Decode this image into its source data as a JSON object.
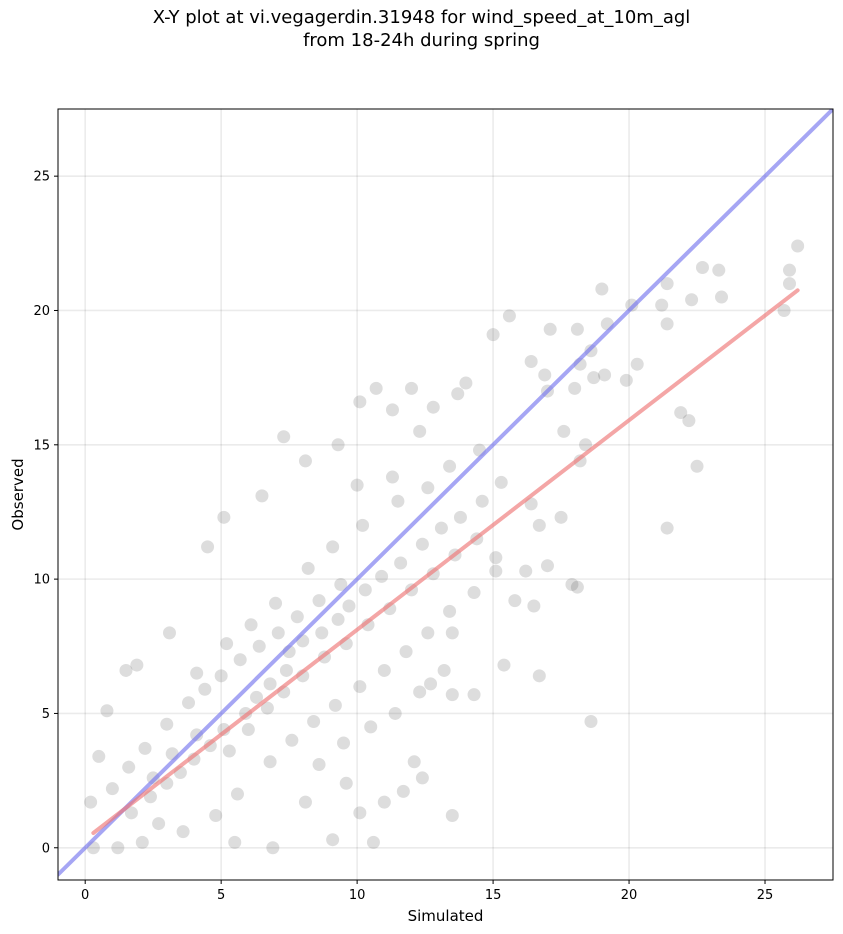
{
  "title_line1": "X-Y plot at vi.vegagerdin.31948 for wind_speed_at_10m_agl",
  "title_line2": "from 18-24h during spring",
  "chart_data": {
    "type": "scatter",
    "xlabel": "Simulated",
    "ylabel": "Observed",
    "xlim": [
      -1.0,
      27.5
    ],
    "ylim": [
      -1.2,
      27.5
    ],
    "xticks": [
      0,
      5,
      10,
      15,
      20,
      25
    ],
    "yticks": [
      0,
      5,
      10,
      15,
      20,
      25
    ],
    "grid": true,
    "points_color": "#555555",
    "series": [
      {
        "values": [
          [
            26.2,
            22.4
          ],
          [
            25.9,
            21.5
          ],
          [
            25.7,
            20.0
          ],
          [
            25.9,
            21.0
          ],
          [
            22.7,
            21.6
          ],
          [
            23.3,
            21.5
          ],
          [
            23.4,
            20.5
          ],
          [
            22.3,
            20.4
          ],
          [
            21.4,
            21.0
          ],
          [
            20.1,
            20.2
          ],
          [
            21.2,
            20.2
          ],
          [
            21.4,
            19.5
          ],
          [
            19.0,
            20.8
          ],
          [
            19.2,
            19.5
          ],
          [
            18.6,
            18.5
          ],
          [
            20.3,
            18.0
          ],
          [
            19.9,
            17.4
          ],
          [
            19.1,
            17.6
          ],
          [
            18.1,
            19.3
          ],
          [
            18.2,
            18.0
          ],
          [
            18.7,
            17.5
          ],
          [
            18.0,
            17.1
          ],
          [
            17.0,
            17.0
          ],
          [
            16.9,
            17.6
          ],
          [
            16.4,
            18.1
          ],
          [
            15.6,
            19.8
          ],
          [
            15.0,
            19.1
          ],
          [
            17.1,
            19.3
          ],
          [
            21.9,
            16.2
          ],
          [
            22.2,
            15.9
          ],
          [
            21.4,
            11.9
          ],
          [
            22.5,
            14.2
          ],
          [
            18.6,
            4.7
          ],
          [
            16.7,
            6.4
          ],
          [
            17.9,
            9.8
          ],
          [
            18.1,
            9.7
          ],
          [
            18.2,
            14.4
          ],
          [
            18.4,
            15.0
          ],
          [
            17.6,
            15.5
          ],
          [
            16.7,
            12.0
          ],
          [
            14.0,
            17.3
          ],
          [
            13.7,
            16.9
          ],
          [
            12.0,
            17.1
          ],
          [
            12.8,
            16.4
          ],
          [
            10.7,
            17.1
          ],
          [
            11.3,
            16.3
          ],
          [
            9.3,
            15.0
          ],
          [
            7.3,
            15.3
          ],
          [
            6.5,
            13.1
          ],
          [
            5.1,
            12.3
          ],
          [
            4.5,
            11.2
          ],
          [
            8.1,
            14.4
          ],
          [
            12.3,
            15.5
          ],
          [
            11.3,
            13.8
          ],
          [
            10.1,
            16.6
          ],
          [
            10.0,
            13.5
          ],
          [
            13.5,
            8.0
          ],
          [
            12.7,
            6.1
          ],
          [
            13.5,
            1.2
          ],
          [
            10.6,
            0.2
          ],
          [
            9.1,
            0.3
          ],
          [
            11.7,
            2.1
          ],
          [
            12.1,
            3.2
          ],
          [
            13.5,
            5.7
          ],
          [
            14.3,
            5.7
          ],
          [
            15.4,
            6.8
          ],
          [
            16.5,
            9.0
          ],
          [
            15.8,
            9.2
          ],
          [
            15.1,
            10.8
          ],
          [
            16.2,
            10.3
          ],
          [
            17.0,
            10.5
          ],
          [
            16.4,
            12.8
          ],
          [
            17.5,
            12.3
          ],
          [
            3.1,
            8.0
          ],
          [
            1.9,
            6.8
          ],
          [
            1.5,
            6.6
          ],
          [
            0.8,
            5.1
          ],
          [
            0.5,
            3.4
          ],
          [
            0.2,
            1.7
          ],
          [
            0.3,
            0.0
          ],
          [
            1.2,
            0.0
          ],
          [
            2.1,
            0.2
          ],
          [
            5.5,
            0.2
          ],
          [
            6.9,
            0.0
          ],
          [
            8.1,
            1.7
          ],
          [
            9.6,
            2.4
          ],
          [
            10.1,
            1.3
          ],
          [
            11.0,
            1.7
          ],
          [
            12.4,
            2.6
          ],
          [
            7.5,
            7.3
          ],
          [
            8.0,
            7.7
          ],
          [
            8.7,
            8.0
          ],
          [
            9.3,
            8.5
          ],
          [
            6.3,
            5.6
          ],
          [
            6.8,
            6.1
          ],
          [
            7.4,
            6.6
          ],
          [
            5.9,
            5.0
          ],
          [
            5.1,
            4.4
          ],
          [
            4.6,
            3.8
          ],
          [
            4.0,
            3.3
          ],
          [
            3.5,
            2.8
          ],
          [
            3.0,
            2.4
          ],
          [
            2.4,
            1.9
          ],
          [
            1.7,
            1.3
          ],
          [
            9.7,
            9.0
          ],
          [
            10.3,
            9.6
          ],
          [
            10.9,
            10.1
          ],
          [
            11.6,
            10.6
          ],
          [
            12.4,
            11.3
          ],
          [
            13.1,
            11.9
          ],
          [
            13.8,
            12.3
          ],
          [
            14.6,
            12.9
          ],
          [
            15.3,
            13.6
          ],
          [
            4.1,
            6.5
          ],
          [
            5.2,
            7.6
          ],
          [
            6.1,
            8.3
          ],
          [
            7.0,
            9.1
          ],
          [
            8.2,
            10.4
          ],
          [
            9.1,
            11.2
          ],
          [
            10.2,
            12.0
          ],
          [
            11.5,
            12.9
          ],
          [
            12.6,
            13.4
          ],
          [
            13.4,
            14.2
          ],
          [
            14.5,
            14.8
          ],
          [
            3.0,
            4.6
          ],
          [
            2.2,
            3.7
          ],
          [
            1.6,
            3.0
          ],
          [
            1.0,
            2.2
          ],
          [
            6.8,
            3.2
          ],
          [
            7.6,
            4.0
          ],
          [
            8.4,
            4.7
          ],
          [
            9.2,
            5.3
          ],
          [
            10.1,
            6.0
          ],
          [
            11.0,
            6.6
          ],
          [
            11.8,
            7.3
          ],
          [
            12.6,
            8.0
          ],
          [
            13.4,
            8.8
          ],
          [
            14.3,
            9.5
          ],
          [
            15.1,
            10.3
          ],
          [
            5.6,
            2.0
          ],
          [
            4.8,
            1.2
          ],
          [
            3.6,
            0.6
          ],
          [
            2.7,
            0.9
          ],
          [
            8.6,
            3.1
          ],
          [
            9.5,
            3.9
          ],
          [
            10.5,
            4.5
          ],
          [
            11.4,
            5.0
          ],
          [
            12.3,
            5.8
          ],
          [
            13.2,
            6.6
          ],
          [
            3.8,
            5.4
          ],
          [
            4.4,
            5.9
          ],
          [
            5.0,
            6.4
          ],
          [
            5.7,
            7.0
          ],
          [
            6.4,
            7.5
          ],
          [
            7.1,
            8.0
          ],
          [
            7.8,
            8.6
          ],
          [
            8.6,
            9.2
          ],
          [
            9.4,
            9.8
          ],
          [
            2.5,
            2.6
          ],
          [
            3.2,
            3.5
          ],
          [
            4.1,
            4.2
          ],
          [
            5.3,
            3.6
          ],
          [
            6.0,
            4.4
          ],
          [
            6.7,
            5.2
          ],
          [
            7.3,
            5.8
          ],
          [
            8.0,
            6.4
          ],
          [
            8.8,
            7.1
          ],
          [
            9.6,
            7.6
          ],
          [
            10.4,
            8.3
          ],
          [
            11.2,
            8.9
          ],
          [
            12.0,
            9.6
          ],
          [
            12.8,
            10.2
          ],
          [
            13.6,
            10.9
          ],
          [
            14.4,
            11.5
          ]
        ]
      }
    ],
    "lines": [
      {
        "name": "one-to-one",
        "color": "#7777ee",
        "from": [
          -1.0,
          -1.0
        ],
        "to": [
          27.5,
          27.5
        ]
      },
      {
        "name": "regression",
        "color": "#ee7777",
        "from": [
          0.3,
          0.55
        ],
        "to": [
          26.2,
          20.75
        ]
      }
    ]
  }
}
